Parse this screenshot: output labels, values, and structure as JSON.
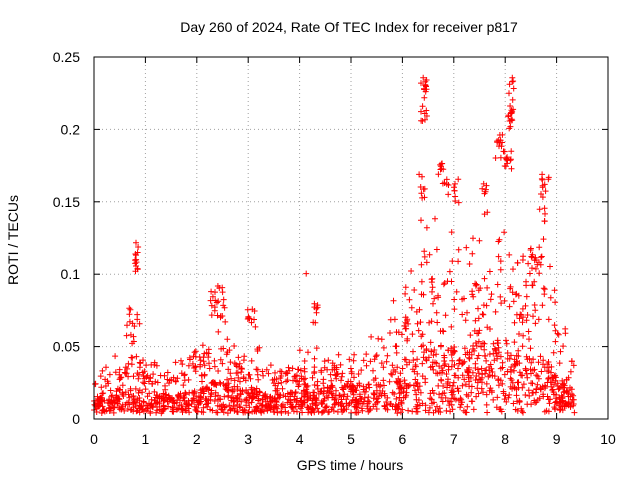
{
  "chart_data": {
    "type": "scatter",
    "title": "Day 260 of 2024, Rate Of TEC Index for receiver p817",
    "xlabel": "GPS time / hours",
    "ylabel": "ROTI / TECUs",
    "xlim": [
      0,
      10
    ],
    "ylim": [
      0,
      0.25
    ],
    "xticks": [
      0,
      1,
      2,
      3,
      4,
      5,
      6,
      7,
      8,
      9,
      10
    ],
    "yticks": [
      0,
      0.05,
      0.1,
      0.15,
      0.2,
      0.25
    ],
    "xtick_labels": [
      "0",
      "1",
      "2",
      "3",
      "4",
      "5",
      "6",
      "7",
      "8",
      "9",
      "10"
    ],
    "ytick_labels": [
      "0",
      "0.05",
      "0.1",
      "0.15",
      "0.2",
      "0.25"
    ],
    "grid": true,
    "marker": "plus",
    "color": "#ff0000",
    "time_range_hours": [
      0,
      9.35
    ],
    "baseline_points_per_hour": 190,
    "envelope": [
      {
        "t": 0.0,
        "base": 0.006,
        "peak": 0.034
      },
      {
        "t": 0.3,
        "base": 0.008,
        "peak": 0.038
      },
      {
        "t": 0.6,
        "base": 0.01,
        "peak": 0.048
      },
      {
        "t": 0.8,
        "base": 0.012,
        "peak": 0.06
      },
      {
        "t": 1.0,
        "base": 0.01,
        "peak": 0.04
      },
      {
        "t": 1.5,
        "base": 0.008,
        "peak": 0.036
      },
      {
        "t": 2.0,
        "base": 0.01,
        "peak": 0.048
      },
      {
        "t": 2.3,
        "base": 0.014,
        "peak": 0.07
      },
      {
        "t": 2.7,
        "base": 0.012,
        "peak": 0.062
      },
      {
        "t": 3.1,
        "base": 0.01,
        "peak": 0.052
      },
      {
        "t": 3.5,
        "base": 0.008,
        "peak": 0.036
      },
      {
        "t": 4.0,
        "base": 0.01,
        "peak": 0.046
      },
      {
        "t": 4.5,
        "base": 0.012,
        "peak": 0.048
      },
      {
        "t": 5.0,
        "base": 0.012,
        "peak": 0.048
      },
      {
        "t": 5.5,
        "base": 0.014,
        "peak": 0.058
      },
      {
        "t": 6.0,
        "base": 0.02,
        "peak": 0.09
      },
      {
        "t": 6.4,
        "base": 0.03,
        "peak": 0.14
      },
      {
        "t": 6.8,
        "base": 0.03,
        "peak": 0.135
      },
      {
        "t": 7.2,
        "base": 0.028,
        "peak": 0.115
      },
      {
        "t": 7.6,
        "base": 0.034,
        "peak": 0.14
      },
      {
        "t": 8.0,
        "base": 0.03,
        "peak": 0.13
      },
      {
        "t": 8.4,
        "base": 0.026,
        "peak": 0.11
      },
      {
        "t": 8.8,
        "base": 0.024,
        "peak": 0.12
      },
      {
        "t": 9.1,
        "base": 0.014,
        "peak": 0.065
      },
      {
        "t": 9.35,
        "base": 0.01,
        "peak": 0.05
      }
    ],
    "clusters": [
      {
        "t": [
          0.8,
          0.86
        ],
        "y": [
          0.098,
          0.128
        ],
        "n": 14
      },
      {
        "t": [
          0.62,
          0.9
        ],
        "y": [
          0.055,
          0.08
        ],
        "n": 12
      },
      {
        "t": [
          2.25,
          2.55
        ],
        "y": [
          0.07,
          0.092
        ],
        "n": 22
      },
      {
        "t": [
          2.95,
          3.15
        ],
        "y": [
          0.06,
          0.076
        ],
        "n": 10
      },
      {
        "t": [
          4.1,
          4.15
        ],
        "y": [
          0.098,
          0.101
        ],
        "n": 1
      },
      {
        "t": [
          4.2,
          4.4
        ],
        "y": [
          0.065,
          0.08
        ],
        "n": 8
      },
      {
        "t": [
          6.35,
          6.48
        ],
        "y": [
          0.205,
          0.238
        ],
        "n": 20
      },
      {
        "t": [
          6.3,
          6.45
        ],
        "y": [
          0.15,
          0.17
        ],
        "n": 8
      },
      {
        "t": [
          6.7,
          6.9
        ],
        "y": [
          0.15,
          0.178
        ],
        "n": 14
      },
      {
        "t": [
          7.0,
          7.1
        ],
        "y": [
          0.14,
          0.172
        ],
        "n": 8
      },
      {
        "t": [
          7.55,
          7.7
        ],
        "y": [
          0.155,
          0.165
        ],
        "n": 6
      },
      {
        "t": [
          7.8,
          7.95
        ],
        "y": [
          0.18,
          0.198
        ],
        "n": 12
      },
      {
        "t": [
          8.05,
          8.18
        ],
        "y": [
          0.2,
          0.238
        ],
        "n": 22
      },
      {
        "t": [
          7.95,
          8.15
        ],
        "y": [
          0.17,
          0.185
        ],
        "n": 14
      },
      {
        "t": [
          8.65,
          8.85
        ],
        "y": [
          0.13,
          0.17
        ],
        "n": 16
      },
      {
        "t": [
          8.4,
          8.7
        ],
        "y": [
          0.09,
          0.12
        ],
        "n": 20
      }
    ]
  }
}
